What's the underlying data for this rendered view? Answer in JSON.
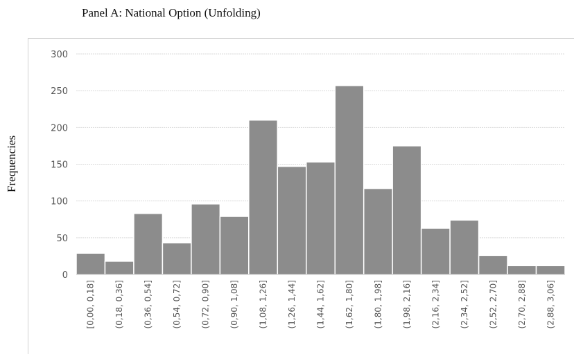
{
  "chart_data": {
    "type": "bar",
    "title": "Panel A: National Option (Unfolding)",
    "y_label": "Frequencies",
    "categories": [
      "[0,00, 0,18]",
      "(0,18, 0,36]",
      "(0,36, 0,54]",
      "(0,54, 0,72]",
      "(0,72, 0,90]",
      "(0,90, 1,08]",
      "(1,08, 1,26]",
      "(1,26, 1,44]",
      "(1,44, 1,62]",
      "(1,62, 1,80]",
      "(1,80, 1,98]",
      "(1,98, 2,16]",
      "(2,16, 2,34]",
      "(2,34, 2,52]",
      "(2,52, 2,70]",
      "(2,70, 2,88]",
      "(2,88, 3,06]"
    ],
    "values": [
      29,
      18,
      83,
      43,
      96,
      79,
      210,
      147,
      153,
      257,
      117,
      175,
      63,
      74,
      26,
      12,
      12
    ],
    "color": "#8c8c8c",
    "ylim": [
      0,
      300
    ],
    "yticks": [
      0,
      50,
      100,
      150,
      200,
      250,
      300
    ],
    "grid": true
  }
}
